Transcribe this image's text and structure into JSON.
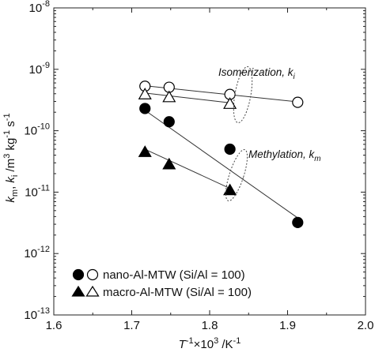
{
  "chart_data": {
    "type": "scatter",
    "x_scale": "linear",
    "y_scale": "log",
    "xlim": [
      1.6,
      2.0
    ],
    "ylim": [
      1e-13,
      1e-08
    ],
    "grid": false,
    "legend_position": "bottom-left",
    "x_ticks": [
      1.6,
      1.7,
      1.8,
      1.9,
      2.0
    ],
    "x_tick_labels": [
      "1.6",
      "1.7",
      "1.8",
      "1.9",
      "2.0"
    ],
    "y_ticks": [
      -8,
      -9,
      -10,
      -11,
      -12,
      -13
    ],
    "y_tick_labels": [
      {
        "base": "10",
        "exp": "-8"
      },
      {
        "base": "10",
        "exp": "-9"
      },
      {
        "base": "10",
        "exp": "-10"
      },
      {
        "base": "10",
        "exp": "-11"
      },
      {
        "base": "10",
        "exp": "-12"
      },
      {
        "base": "10",
        "exp": "-13"
      }
    ],
    "xlabel": {
      "p1": "T",
      "p2": "-1",
      "p3": "×10",
      "p4": "3",
      "p5": " /K",
      "p6": "-1"
    },
    "ylabel": {
      "p1": "k",
      "p2": "m",
      "p3": ", ",
      "p4": "k",
      "p5": "i",
      "p6": " /m",
      "p7": "3",
      "p8": " kg",
      "p9": "-1",
      "p10": " s",
      "p11": "-1"
    },
    "annotations": [
      {
        "p1": "Isomerization, ",
        "p2": "k",
        "p3": "i"
      },
      {
        "p1": "Methylation, ",
        "p2": "k",
        "p3": "m"
      }
    ],
    "legend": [
      {
        "label": "nano-Al-MTW (Si/Al = 100)",
        "markers": [
          "filled-circle",
          "open-circle"
        ]
      },
      {
        "label": "macro-Al-MTW (Si/Al = 100)",
        "markers": [
          "filled-triangle",
          "open-triangle"
        ]
      }
    ],
    "series": [
      {
        "marker": "open-circle",
        "x": [
          1.717,
          1.748,
          1.826,
          1.913
        ],
        "y": [
          5.3e-10,
          5.1e-10,
          3.9e-10,
          2.9e-10
        ]
      },
      {
        "marker": "open-triangle",
        "x": [
          1.717,
          1.748,
          1.826
        ],
        "y": [
          4e-10,
          3.6e-10,
          2.8e-10
        ]
      },
      {
        "marker": "filled-circle",
        "x": [
          1.717,
          1.748,
          1.826,
          1.913
        ],
        "y": [
          2.3e-10,
          1.4e-10,
          5e-11,
          3.2e-12
        ]
      },
      {
        "marker": "filled-triangle",
        "x": [
          1.717,
          1.748,
          1.826
        ],
        "y": [
          4.6e-11,
          2.9e-11,
          1.1e-11
        ]
      }
    ],
    "fit_lines": [
      {
        "x": [
          1.717,
          1.913
        ],
        "y": [
          5.4e-10,
          2.95e-10
        ]
      },
      {
        "x": [
          1.717,
          1.826
        ],
        "y": [
          4.1e-10,
          2.85e-10
        ]
      },
      {
        "x": [
          1.717,
          1.913
        ],
        "y": [
          2.15e-10,
          3.8e-12
        ]
      },
      {
        "x": [
          1.717,
          1.826
        ],
        "y": [
          5e-11,
          1.15e-11
        ]
      }
    ]
  }
}
